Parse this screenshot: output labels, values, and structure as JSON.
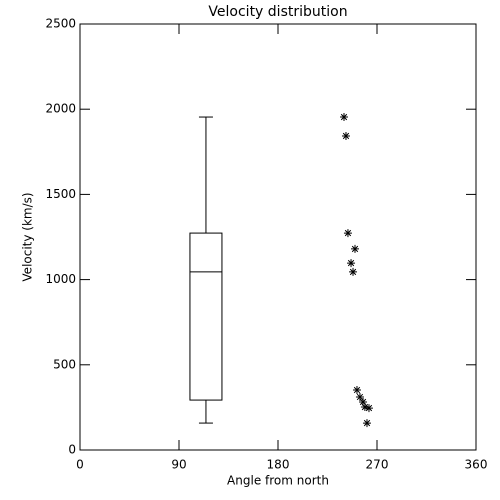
{
  "chart_data": {
    "type": "box",
    "title": "Velocity distribution",
    "x_label": "Angle from north",
    "y_label": "Velocity (km/s)",
    "xlim": [
      0,
      360
    ],
    "xticks": [
      0,
      90,
      180,
      270,
      360
    ],
    "ylim": [
      0,
      2500
    ],
    "yticks": [
      0,
      500,
      1000,
      1500,
      2000,
      2500
    ],
    "color": "#000000",
    "box": {
      "x": 114.5,
      "whisker_low": 158,
      "q1": 293,
      "median": 1045,
      "q3": 1273,
      "whisker_high": 1954
    },
    "points": {
      "x": [
        240,
        241.8,
        243.6,
        250,
        246.4,
        248.2,
        251.8,
        254.5,
        257.3,
        259,
        262.7,
        260.9
      ],
      "values": [
        1954,
        1843,
        1273,
        1180,
        1097,
        1045,
        352,
        311,
        282,
        252,
        246,
        158
      ]
    }
  }
}
